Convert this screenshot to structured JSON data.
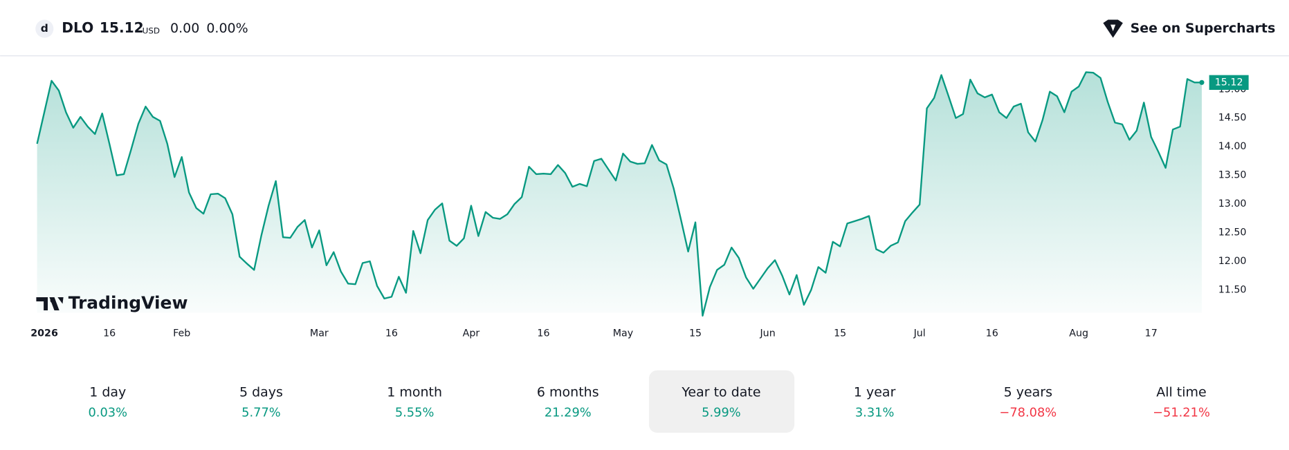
{
  "header": {
    "symbol": "DLO",
    "price": "15.12",
    "currency": "USD",
    "change": "0.00",
    "change_percent": "0.00%",
    "link": "See on Supercharts"
  },
  "watermark": "TradingView",
  "chart_data": {
    "type": "line",
    "color": "#089981",
    "values": [
      14.05,
      14.6,
      15.15,
      14.98,
      14.6,
      14.33,
      14.52,
      14.35,
      14.22,
      14.58,
      14.05,
      13.5,
      13.52,
      13.95,
      14.4,
      14.7,
      14.52,
      14.45,
      14.05,
      13.47,
      13.82,
      13.2,
      12.93,
      12.83,
      13.17,
      13.18,
      13.1,
      12.82,
      12.08,
      11.96,
      11.85,
      12.45,
      12.97,
      13.4,
      12.42,
      12.41,
      12.6,
      12.72,
      12.24,
      12.54,
      11.93,
      12.16,
      11.82,
      11.61,
      11.6,
      11.97,
      12.0,
      11.57,
      11.35,
      11.38,
      11.73,
      11.45,
      12.53,
      12.14,
      12.72,
      12.9,
      13.01,
      12.36,
      12.27,
      12.4,
      12.97,
      12.44,
      12.86,
      12.76,
      12.74,
      12.82,
      13.0,
      13.12,
      13.65,
      13.52,
      13.53,
      13.52,
      13.68,
      13.54,
      13.3,
      13.35,
      13.31,
      13.75,
      13.79,
      13.6,
      13.41,
      13.88,
      13.74,
      13.7,
      13.71,
      14.03,
      13.76,
      13.69,
      13.27,
      12.73,
      12.17,
      12.68,
      11.05,
      11.55,
      11.85,
      11.94,
      12.24,
      12.06,
      11.72,
      11.52,
      11.7,
      11.88,
      12.02,
      11.75,
      11.42,
      11.76,
      11.24,
      11.5,
      11.9,
      11.8,
      12.34,
      12.26,
      12.66,
      12.7,
      12.74,
      12.79,
      12.21,
      12.15,
      12.27,
      12.33,
      12.7,
      12.85,
      12.99,
      14.67,
      14.85,
      15.25,
      14.88,
      14.5,
      14.57,
      15.17,
      14.93,
      14.86,
      14.91,
      14.6,
      14.5,
      14.7,
      14.75,
      14.25,
      14.09,
      14.47,
      14.96,
      14.88,
      14.6,
      14.96,
      15.05,
      15.3,
      15.29,
      15.2,
      14.78,
      14.42,
      14.39,
      14.12,
      14.28,
      14.77,
      14.17,
      13.91,
      13.63,
      14.3,
      14.35,
      15.18,
      15.12,
      15.12
    ],
    "xticks": [
      {
        "value": 1,
        "label": "2026"
      },
      {
        "value": 10,
        "label": "16"
      },
      {
        "value": 20,
        "label": "Feb"
      },
      {
        "value": 39,
        "label": "Mar"
      },
      {
        "value": 49,
        "label": "16"
      },
      {
        "value": 60,
        "label": "Apr"
      },
      {
        "value": 70,
        "label": "16"
      },
      {
        "value": 81,
        "label": "May"
      },
      {
        "value": 91,
        "label": "15"
      },
      {
        "value": 101,
        "label": "Jun"
      },
      {
        "value": 111,
        "label": "15"
      },
      {
        "value": 122,
        "label": "Jul"
      },
      {
        "value": 132,
        "label": "16"
      },
      {
        "value": 144,
        "label": "Aug"
      },
      {
        "value": 154,
        "label": "17"
      }
    ],
    "ylim": [
      11.1,
      15.37
    ],
    "yticks": [
      {
        "value": 11.5,
        "label": "11.50"
      },
      {
        "value": 12,
        "label": "12.00"
      },
      {
        "value": 12.5,
        "label": "12.50"
      },
      {
        "value": 13,
        "label": "13.00"
      },
      {
        "value": 13.5,
        "label": "13.50"
      },
      {
        "value": 14,
        "label": "14.00"
      },
      {
        "value": 14.5,
        "label": "14.50"
      },
      {
        "value": 15,
        "label": "15.00"
      }
    ]
  },
  "periods": [
    {
      "label": "1 day",
      "change": "0.03%",
      "color": "#089981"
    },
    {
      "label": "5 days",
      "change": "5.77%",
      "color": "#089981"
    },
    {
      "label": "1 month",
      "change": "5.55%",
      "color": "#089981"
    },
    {
      "label": "6 months",
      "change": "21.29%",
      "color": "#089981"
    },
    {
      "label": "Year to date",
      "change": "5.99%",
      "color": "#089981"
    },
    {
      "label": "1 year",
      "change": "3.31%",
      "color": "#089981"
    },
    {
      "label": "5 years",
      "change": "−78.08%",
      "color": "#f23645"
    },
    {
      "label": "All time",
      "change": "−51.21%",
      "color": "#f23645"
    }
  ],
  "selected_period": 4
}
